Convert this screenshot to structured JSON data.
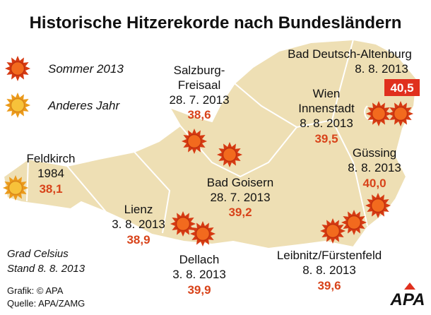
{
  "title": "Historische Hitzerekorde nach Bundesländern",
  "legend": [
    {
      "label": "Sommer 2013"
    },
    {
      "label": "Anderes Jahr"
    }
  ],
  "locations": [
    {
      "name": [
        "Feldkirch"
      ],
      "date": "1984",
      "value": "38,1"
    },
    {
      "name": [
        "Salzburg-",
        "Freisaal"
      ],
      "date": "28. 7. 2013",
      "value": "38,6"
    },
    {
      "name": [
        "Bad Goisern"
      ],
      "date": "28. 7. 2013",
      "value": "39,2"
    },
    {
      "name": [
        "Lienz"
      ],
      "date": "3. 8. 2013",
      "value": "38,9"
    },
    {
      "name": [
        "Dellach"
      ],
      "date": "3. 8. 2013",
      "value": "39,9"
    },
    {
      "name": [
        "Bad Deutsch-Altenburg"
      ],
      "date": "8. 8. 2013",
      "value": "40,5"
    },
    {
      "name": [
        "Wien",
        "Innenstadt"
      ],
      "date": "8. 8. 2013",
      "value": "39,5"
    },
    {
      "name": [
        "Güssing"
      ],
      "date": "8. 8. 2013",
      "value": "40,0"
    },
    {
      "name": [
        "Leibnitz/Fürstenfeld"
      ],
      "date": "8. 8. 2013",
      "value": "39,6"
    }
  ],
  "notes": [
    "Grad Celsius",
    "Stand 8. 8. 2013"
  ],
  "credits": [
    "Grafik: © APA",
    "Quelle: APA/ZAMG"
  ],
  "logo": "APA"
}
